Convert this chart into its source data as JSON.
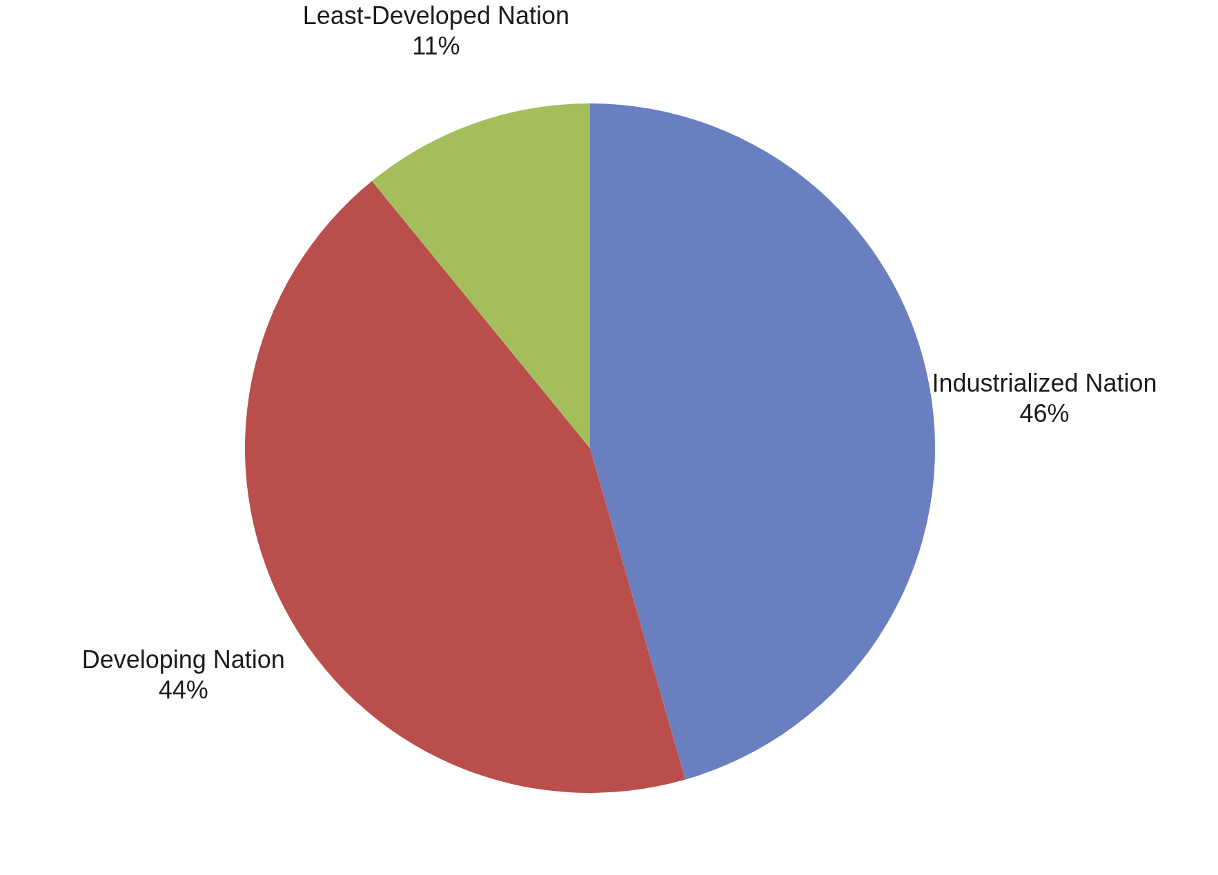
{
  "chart_data": {
    "type": "pie",
    "categories": [
      "Industrialized Nation",
      "Developing Nation",
      "Least-Developed Nation"
    ],
    "values": [
      46,
      44,
      11
    ],
    "value_labels": [
      "46%",
      "44%",
      "11%"
    ],
    "colors": [
      "#6a7fc0",
      "#b94e4b",
      "#a3be5b"
    ],
    "legend": false
  }
}
